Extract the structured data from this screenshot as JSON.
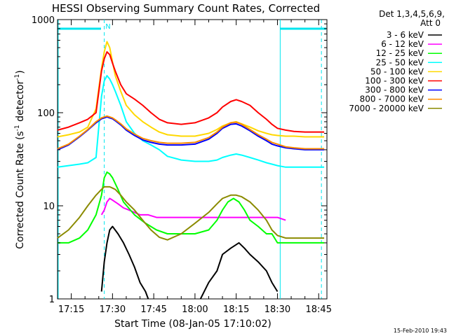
{
  "chart_data": {
    "type": "line",
    "title": "HESSI Observing Summary Count Rates, Corrected",
    "xlabel": "Start Time (08-Jan-05 17:10:02)",
    "ylabel": "Corrected Count Rate (s",
    "ylabel_sup1": "-1",
    "ylabel_mid": " detector",
    "ylabel_sup2": "-1",
    "ylabel_end": ")",
    "y_scale": "log",
    "ylim": [
      1,
      1000
    ],
    "xlim_minutes": [
      17.1667,
      18.8
    ],
    "x_ticks": [
      "17:15",
      "17:30",
      "17:45",
      "18:00",
      "18:15",
      "18:30",
      "18:45"
    ],
    "y_ticks": [
      "1",
      "10",
      "100",
      "1000"
    ],
    "timestamp": "15-Feb-2010 19:43",
    "legend_header": [
      "Det 1,3,4,5,6,9,",
      "Att 0"
    ],
    "flag_label": "N",
    "colors": {
      "axis": "#000000",
      "marker": "#00e5ee"
    },
    "series": [
      {
        "name": "3 - 6 keV",
        "color": "#000000",
        "t": [
          "17:21",
          "17:24",
          "17:26",
          "17:27",
          "17:28",
          "17:29",
          "17:30",
          "17:32",
          "17:34",
          "17:36",
          "17:38",
          "17:40",
          "17:42",
          "17:43",
          "17:46",
          "17:50",
          "17:55",
          "18:00",
          "18:02",
          "18:05",
          "18:08",
          "18:10",
          "18:13",
          "18:16",
          "18:18",
          "18:20",
          "18:23",
          "18:26",
          "18:28",
          "18:30"
        ],
        "values": [
          null,
          null,
          1.2,
          2.5,
          4,
          5.5,
          6,
          5,
          4,
          3,
          2.2,
          1.5,
          1.2,
          1,
          null,
          null,
          null,
          null,
          1,
          1.5,
          2,
          3,
          3.5,
          4,
          3.5,
          3,
          2.5,
          2,
          1.5,
          1.2
        ]
      },
      {
        "name": "6 - 12 keV",
        "color": "#ff00ff",
        "t": [
          "17:21",
          "17:24",
          "17:26",
          "17:27",
          "17:28",
          "17:29",
          "17:30",
          "17:32",
          "17:34",
          "17:36",
          "17:38",
          "17:40",
          "17:43",
          "17:46",
          "17:50",
          "17:55",
          "18:00",
          "18:03",
          "18:05",
          "18:08",
          "18:10",
          "18:13",
          "18:16",
          "18:18",
          "18:20",
          "18:23",
          "18:26",
          "18:28",
          "18:30",
          "18:33"
        ],
        "values": [
          null,
          null,
          8,
          9,
          11,
          12,
          11.5,
          10.5,
          9.5,
          9,
          8.5,
          8,
          8,
          7.5,
          7.5,
          7.5,
          7.5,
          7.5,
          7.5,
          7.5,
          7.5,
          7.5,
          7.5,
          7.5,
          7.5,
          7.5,
          7.5,
          7.5,
          7.5,
          7
        ]
      },
      {
        "name": "12 - 25 keV",
        "color": "#00ff00",
        "t": [
          "17:10",
          "17:14",
          "17:18",
          "17:21",
          "17:24",
          "17:26",
          "17:27",
          "17:28",
          "17:29",
          "17:30",
          "17:32",
          "17:34",
          "17:38",
          "17:42",
          "17:46",
          "17:50",
          "17:55",
          "18:00",
          "18:05",
          "18:08",
          "18:10",
          "18:12",
          "18:14",
          "18:16",
          "18:18",
          "18:20",
          "18:23",
          "18:26",
          "18:28",
          "18:30",
          "18:33",
          "18:36",
          "18:40",
          "18:44",
          "18:47"
        ],
        "values": [
          4,
          4,
          4.5,
          5.5,
          8,
          13,
          20,
          23,
          22,
          20,
          15,
          11,
          8,
          6.5,
          5.5,
          5,
          5,
          5,
          5.5,
          7,
          9,
          11,
          12,
          11,
          9,
          7,
          6,
          5,
          5,
          4,
          4,
          4,
          4,
          4,
          4
        ]
      },
      {
        "name": "25 - 50 keV",
        "color": "#00ffff",
        "t": [
          "17:10",
          "17:14",
          "17:18",
          "17:21",
          "17:24",
          "17:26",
          "17:27",
          "17:28",
          "17:29",
          "17:30",
          "17:31",
          "17:33",
          "17:35",
          "17:38",
          "17:41",
          "17:44",
          "17:47",
          "17:50",
          "17:55",
          "18:00",
          "18:05",
          "18:08",
          "18:10",
          "18:13",
          "18:15",
          "18:17",
          "18:20",
          "18:23",
          "18:26",
          "18:28",
          "18:30",
          "18:33",
          "18:36",
          "18:40",
          "18:44",
          "18:47"
        ],
        "values": [
          26,
          27,
          28,
          29,
          33,
          150,
          220,
          250,
          230,
          200,
          170,
          120,
          80,
          60,
          50,
          45,
          40,
          34,
          31,
          30,
          30,
          31,
          33,
          35,
          36,
          35,
          33,
          31,
          29,
          28,
          27,
          26,
          26,
          26,
          26,
          26
        ]
      },
      {
        "name": "50 - 100 keV",
        "color": "#ffd800",
        "t": [
          "17:10",
          "17:14",
          "17:18",
          "17:21",
          "17:24",
          "17:26",
          "17:27",
          "17:28",
          "17:29",
          "17:30",
          "17:31",
          "17:33",
          "17:35",
          "17:38",
          "17:41",
          "17:44",
          "17:47",
          "17:50",
          "17:55",
          "18:00",
          "18:05",
          "18:08",
          "18:10",
          "18:13",
          "18:15",
          "18:17",
          "18:20",
          "18:23",
          "18:26",
          "18:28",
          "18:30",
          "18:33",
          "18:36",
          "18:40",
          "18:44",
          "18:47"
        ],
        "values": [
          55,
          58,
          62,
          70,
          110,
          300,
          450,
          580,
          500,
          350,
          250,
          170,
          120,
          95,
          80,
          70,
          62,
          58,
          56,
          56,
          60,
          66,
          72,
          78,
          80,
          76,
          70,
          64,
          60,
          58,
          57,
          56,
          56,
          55,
          55,
          55
        ]
      },
      {
        "name": "100 - 300 keV",
        "color": "#ff0000",
        "t": [
          "17:10",
          "17:14",
          "17:18",
          "17:21",
          "17:24",
          "17:26",
          "17:27",
          "17:28",
          "17:29",
          "17:30",
          "17:31",
          "17:33",
          "17:35",
          "17:38",
          "17:41",
          "17:44",
          "17:47",
          "17:50",
          "17:55",
          "18:00",
          "18:05",
          "18:08",
          "18:10",
          "18:13",
          "18:15",
          "18:17",
          "18:20",
          "18:23",
          "18:26",
          "18:28",
          "18:30",
          "18:33",
          "18:36",
          "18:40",
          "18:44",
          "18:47"
        ],
        "values": [
          65,
          70,
          78,
          85,
          100,
          280,
          380,
          450,
          420,
          340,
          280,
          200,
          160,
          140,
          120,
          100,
          85,
          78,
          75,
          78,
          88,
          100,
          115,
          132,
          138,
          132,
          120,
          100,
          85,
          75,
          68,
          65,
          63,
          62,
          62,
          62
        ]
      },
      {
        "name": "300 - 800 keV",
        "color": "#0000ff",
        "t": [
          "17:10",
          "17:14",
          "17:18",
          "17:21",
          "17:24",
          "17:26",
          "17:27",
          "17:28",
          "17:29",
          "17:30",
          "17:31",
          "17:33",
          "17:35",
          "17:38",
          "17:41",
          "17:44",
          "17:47",
          "17:50",
          "17:55",
          "18:00",
          "18:05",
          "18:08",
          "18:10",
          "18:13",
          "18:15",
          "18:17",
          "18:20",
          "18:23",
          "18:26",
          "18:28",
          "18:30",
          "18:33",
          "18:36",
          "18:40",
          "18:44",
          "18:47"
        ],
        "values": [
          40,
          45,
          55,
          65,
          78,
          86,
          88,
          90,
          88,
          86,
          82,
          74,
          65,
          57,
          51,
          48,
          46,
          45,
          45,
          46,
          52,
          60,
          68,
          75,
          76,
          72,
          64,
          56,
          50,
          46,
          44,
          42,
          41,
          40,
          40,
          40
        ]
      },
      {
        "name": "800 - 7000 keV",
        "color": "#ff8c00",
        "t": [
          "17:10",
          "17:14",
          "17:18",
          "17:21",
          "17:24",
          "17:26",
          "17:27",
          "17:28",
          "17:29",
          "17:30",
          "17:31",
          "17:33",
          "17:35",
          "17:38",
          "17:41",
          "17:44",
          "17:47",
          "17:50",
          "17:55",
          "18:00",
          "18:05",
          "18:08",
          "18:10",
          "18:13",
          "18:15",
          "18:17",
          "18:20",
          "18:23",
          "18:26",
          "18:28",
          "18:30",
          "18:33",
          "18:36",
          "18:40",
          "18:44",
          "18:47"
        ],
        "values": [
          41,
          46,
          56,
          66,
          80,
          88,
          90,
          92,
          90,
          88,
          84,
          76,
          67,
          59,
          53,
          50,
          48,
          47,
          47,
          48,
          54,
          62,
          70,
          78,
          79,
          75,
          66,
          58,
          52,
          48,
          46,
          43,
          42,
          41,
          41,
          41
        ]
      },
      {
        "name": "7000 - 20000 keV",
        "color": "#8b8b00",
        "t": [
          "17:10",
          "17:14",
          "17:18",
          "17:21",
          "17:24",
          "17:26",
          "17:27",
          "17:28",
          "17:29",
          "17:30",
          "17:31",
          "17:33",
          "17:35",
          "17:38",
          "17:41",
          "17:44",
          "17:47",
          "17:50",
          "17:55",
          "18:00",
          "18:05",
          "18:08",
          "18:10",
          "18:13",
          "18:15",
          "18:17",
          "18:20",
          "18:23",
          "18:26",
          "18:28",
          "18:30",
          "18:33",
          "18:36",
          "18:40",
          "18:44",
          "18:47"
        ],
        "values": [
          4.5,
          5.5,
          7.5,
          10,
          13,
          15,
          16,
          16,
          16,
          15.5,
          15,
          13,
          11,
          9,
          7,
          5.5,
          4.6,
          4.3,
          5,
          6.5,
          8.5,
          10.5,
          12,
          13,
          13,
          12.5,
          11,
          9,
          7,
          5.5,
          4.8,
          4.5,
          4.5,
          4.5,
          4.5,
          4.5
        ]
      }
    ]
  }
}
